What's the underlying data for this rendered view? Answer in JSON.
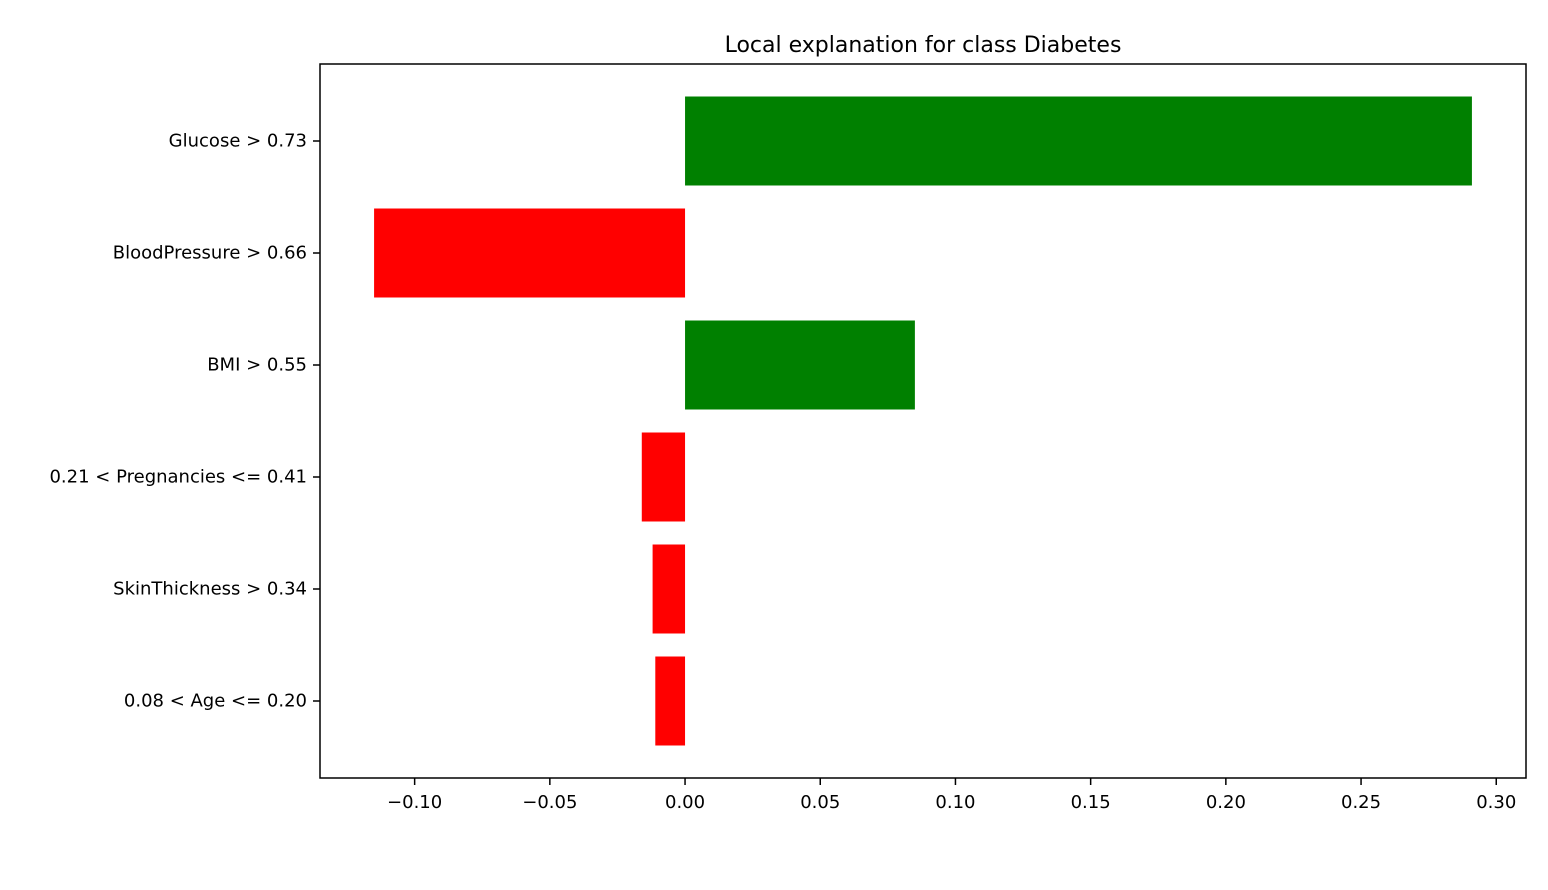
{
  "chart_data": {
    "type": "bar",
    "orientation": "horizontal",
    "title": "Local explanation for class Diabetes",
    "xlabel": "",
    "ylabel": "",
    "categories": [
      "Glucose > 0.73",
      "BloodPressure > 0.66",
      "BMI > 0.55",
      "0.21 < Pregnancies <= 0.41",
      "SkinThickness > 0.34",
      "0.08 < Age <= 0.20"
    ],
    "values": [
      0.291,
      -0.115,
      0.085,
      -0.016,
      -0.012,
      -0.011
    ],
    "xlim": [
      -0.135,
      0.311
    ],
    "xticks": [
      -0.1,
      -0.05,
      0.0,
      0.05,
      0.1,
      0.15,
      0.2,
      0.25,
      0.3
    ],
    "xtick_labels": [
      "−0.10",
      "−0.05",
      "0.00",
      "0.05",
      "0.10",
      "0.15",
      "0.20",
      "0.25",
      "0.30"
    ],
    "grid": false,
    "colors": {
      "positive": "#008000",
      "negative": "#ff0000",
      "axes": "#000000"
    }
  }
}
